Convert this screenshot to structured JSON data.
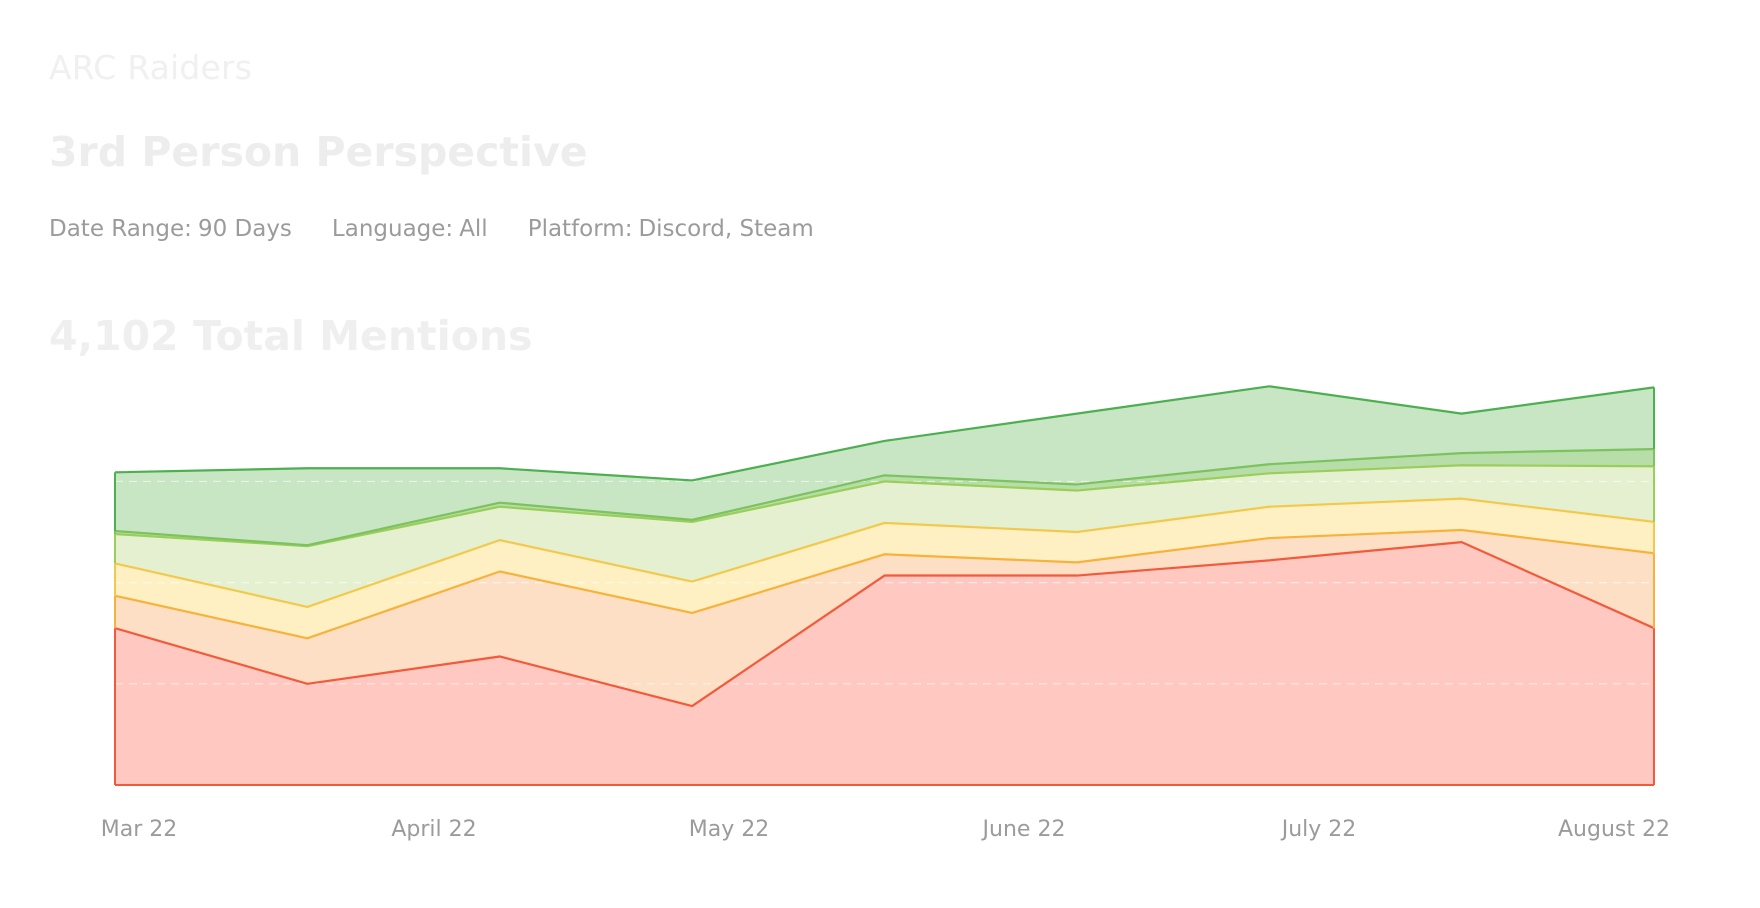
{
  "header": {
    "game": "ARC Raiders",
    "topic": "3rd Person Perspective",
    "filters": {
      "date_label": "Date Range:",
      "date_value": "90 Days",
      "language_label": "Language:",
      "language_value": "All",
      "platform_label": "Platform:",
      "platform_value": "Discord, Steam"
    },
    "total": "4,102 Total Mentions"
  },
  "chart_data": {
    "type": "area",
    "stacked": true,
    "x_tick_labels": [
      "Mar 22",
      "April 22",
      "May 22",
      "June 22",
      "July 22",
      "August 22"
    ],
    "x": [
      0,
      1,
      2,
      3,
      4,
      5,
      6,
      7,
      8
    ],
    "ylim": [
      0,
      420
    ],
    "grid": "horizontal dashed",
    "legend": "none",
    "series": [
      {
        "values": [
          155,
          100,
          127,
          78,
          207,
          207,
          222,
          240,
          155
        ],
        "color": "#f25a3c",
        "fill": "#ffc9c1"
      },
      {
        "values": [
          32,
          45,
          84,
          92,
          21,
          13,
          22,
          12,
          74
        ],
        "color": "#f7b23b",
        "fill": "#fddfc5"
      },
      {
        "values": [
          32,
          31,
          31,
          31,
          31,
          30,
          31,
          31,
          31
        ],
        "color": "#f2c94c",
        "fill": "#fff0c4"
      },
      {
        "values": [
          29,
          60,
          33,
          59,
          41,
          41,
          33,
          33,
          55
        ],
        "color": "#9acd5a",
        "fill": "#e4f0cf"
      },
      {
        "values": [
          3,
          1,
          4,
          2,
          6,
          6,
          9,
          12,
          17
        ],
        "color": "#7cc25e",
        "fill": "#b7dea8"
      },
      {
        "values": [
          58,
          76,
          34,
          39,
          34,
          70,
          77,
          39,
          61
        ],
        "color": "#4caf50",
        "fill": "#c8e6c4"
      }
    ]
  }
}
